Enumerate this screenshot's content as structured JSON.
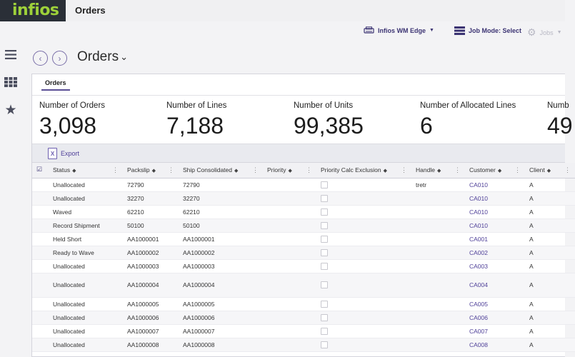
{
  "app": {
    "logo": "infios",
    "title": "Orders"
  },
  "subbar": {
    "warehouse": "Infios WM Edge",
    "job_mode": "Job Mode: Select",
    "jobs": "Jobs"
  },
  "page": {
    "title": "Orders"
  },
  "tabs": [
    {
      "label": "Orders",
      "active": true
    }
  ],
  "metrics": [
    {
      "label": "Number of Orders",
      "value": "3,098"
    },
    {
      "label": "Number of Lines",
      "value": "7,188"
    },
    {
      "label": "Number of Units",
      "value": "99,385"
    },
    {
      "label": "Number of Allocated Lines",
      "value": "6"
    },
    {
      "label": "Numb",
      "value": "49"
    }
  ],
  "toolbar": {
    "export_label": "Export"
  },
  "table": {
    "columns": [
      "Status",
      "Packslip",
      "Ship Consolidated",
      "Priority",
      "Priority Calc Exclusion",
      "Handle",
      "Customer",
      "Client"
    ],
    "rows": [
      {
        "status": "Unallocated",
        "packslip": "72790",
        "ship": "72790",
        "handle": "tretr",
        "customer": "CA010",
        "client": "A"
      },
      {
        "status": "Unallocated",
        "packslip": "32270",
        "ship": "32270",
        "handle": "",
        "customer": "CA010",
        "client": "A"
      },
      {
        "status": "Waved",
        "packslip": "62210",
        "ship": "62210",
        "handle": "",
        "customer": "CA010",
        "client": "A"
      },
      {
        "status": "Record Shipment",
        "packslip": "50100",
        "ship": "50100",
        "handle": "",
        "customer": "CA010",
        "client": "A"
      },
      {
        "status": "Held Short",
        "packslip": "AA1000001",
        "ship": "AA1000001",
        "handle": "",
        "customer": "CA001",
        "client": "A"
      },
      {
        "status": "Ready to Wave",
        "packslip": "AA1000002",
        "ship": "AA1000002",
        "handle": "",
        "customer": "CA002",
        "client": "A"
      },
      {
        "status": "Unallocated",
        "packslip": "AA1000003",
        "ship": "AA1000003",
        "handle": "",
        "customer": "CA003",
        "client": "A"
      },
      {
        "status": "Unallocated",
        "packslip": "AA1000004",
        "ship": "AA1000004",
        "handle": "",
        "customer": "CA004",
        "client": "A"
      },
      {
        "status": "Unallocated",
        "packslip": "AA1000005",
        "ship": "AA1000005",
        "handle": "",
        "customer": "CA005",
        "client": "A"
      },
      {
        "status": "Unallocated",
        "packslip": "AA1000006",
        "ship": "AA1000006",
        "handle": "",
        "customer": "CA006",
        "client": "A"
      },
      {
        "status": "Unallocated",
        "packslip": "AA1000007",
        "ship": "AA1000007",
        "handle": "",
        "customer": "CA007",
        "client": "A"
      },
      {
        "status": "Unallocated",
        "packslip": "AA1000008",
        "ship": "AA1000008",
        "handle": "",
        "customer": "CA008",
        "client": "A"
      }
    ]
  },
  "colors": {
    "brand_green": "#9ed13a",
    "accent_purple": "#4e3f98",
    "logo_bg": "#2a2f37"
  },
  "icons": [
    "hamburger-icon",
    "grid-icon",
    "star-icon",
    "printer-icon",
    "list-icon",
    "gear-icon",
    "chevron-left-icon",
    "chevron-right-icon",
    "excel-icon"
  ]
}
